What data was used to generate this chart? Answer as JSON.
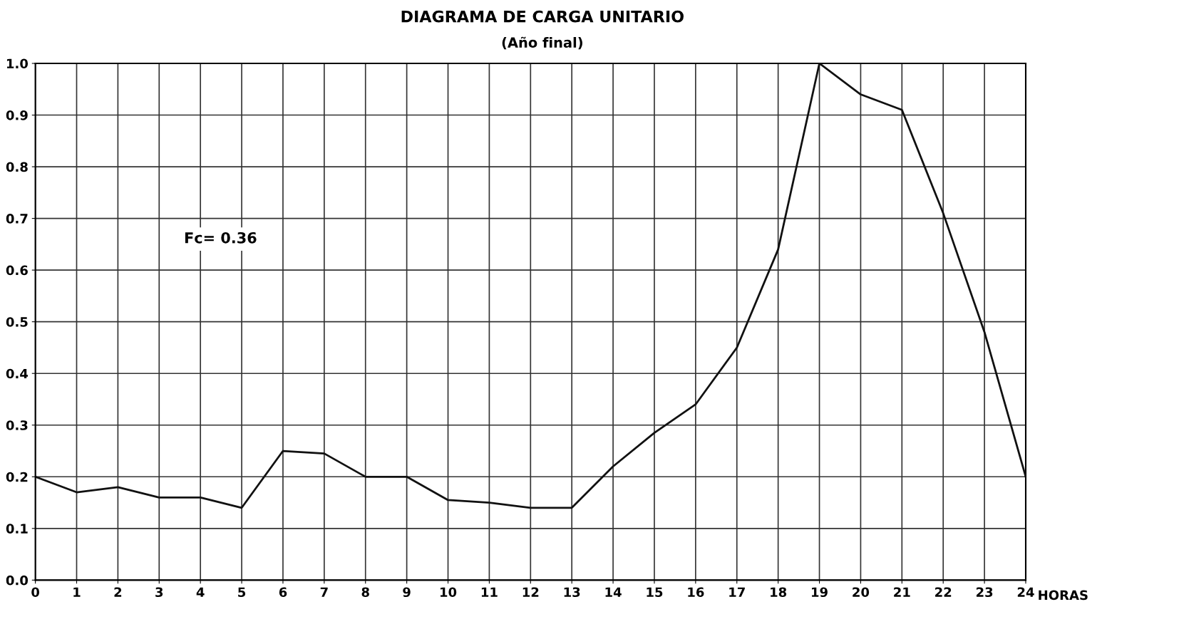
{
  "chart_data": {
    "type": "line",
    "title": "DIAGRAMA DE CARGA UNITARIO",
    "subtitle": "(Año final)",
    "xlabel": "HORAS",
    "x": [
      0,
      1,
      2,
      3,
      4,
      5,
      6,
      7,
      8,
      9,
      10,
      11,
      12,
      13,
      14,
      15,
      16,
      17,
      18,
      19,
      20,
      21,
      22,
      23,
      24
    ],
    "series": [
      {
        "color": "#111111",
        "values": [
          0.2,
          0.17,
          0.18,
          0.16,
          0.16,
          0.14,
          0.25,
          0.245,
          0.2,
          0.2,
          0.155,
          0.15,
          0.14,
          0.14,
          0.22,
          0.285,
          0.34,
          0.45,
          0.64,
          1.0,
          0.94,
          0.91,
          0.71,
          0.48,
          0.2
        ]
      }
    ],
    "xlim": [
      0,
      24
    ],
    "xticks": [
      0,
      1,
      2,
      3,
      4,
      5,
      6,
      7,
      8,
      9,
      10,
      11,
      12,
      13,
      14,
      15,
      16,
      17,
      18,
      19,
      20,
      21,
      22,
      23,
      24
    ],
    "ylim": [
      0,
      1.0
    ],
    "yticks": [
      {
        "value": 0,
        "label": "0.0"
      },
      {
        "value": 0.1,
        "label": "0.1"
      },
      {
        "value": 0.2,
        "label": "0.2"
      },
      {
        "value": 0.3,
        "label": "0.3"
      },
      {
        "value": 0.4,
        "label": "0.4"
      },
      {
        "value": 0.5,
        "label": "0.5"
      },
      {
        "value": 0.6,
        "label": "0.6"
      },
      {
        "value": 0.7,
        "label": "0.7"
      },
      {
        "value": 0.8,
        "label": "0.8"
      },
      {
        "value": 0.9,
        "label": "0.9"
      },
      {
        "value": 1.0,
        "label": "1.0"
      }
    ],
    "annotations": [
      "Fc= 0.36"
    ],
    "grid": true,
    "marker": "none",
    "line_style": "solid"
  }
}
